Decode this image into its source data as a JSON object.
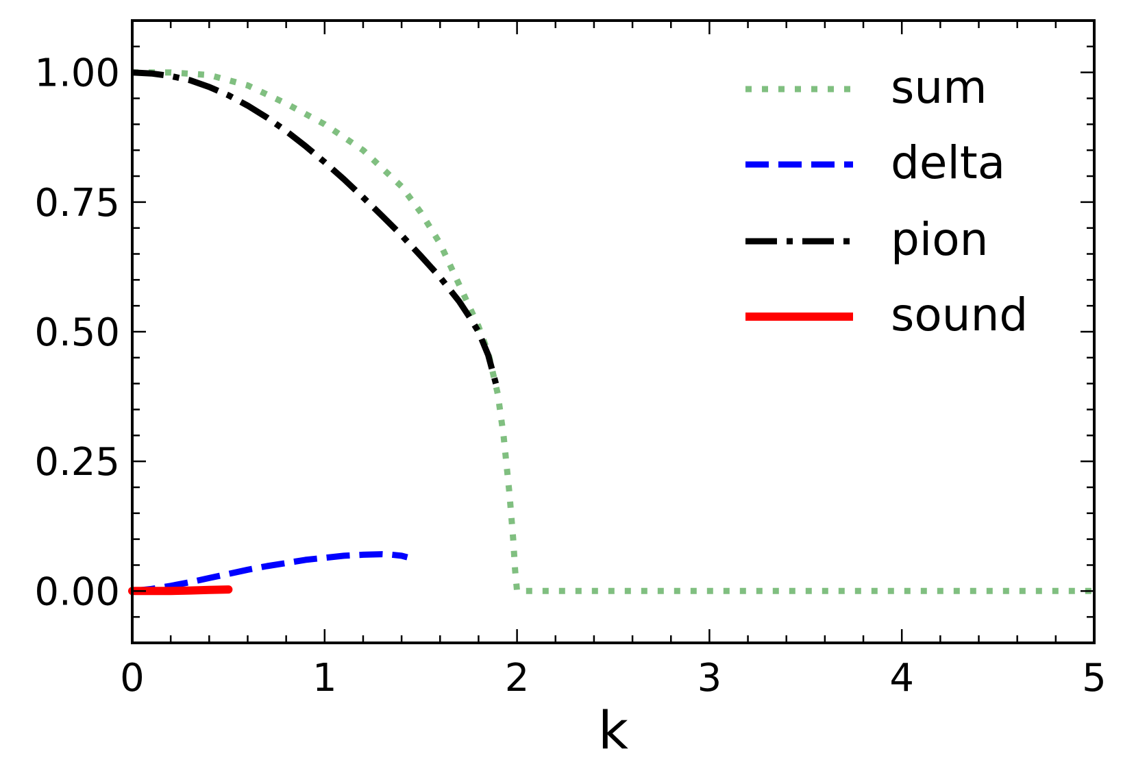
{
  "chart_data": {
    "type": "line",
    "title": "",
    "xlabel": "k",
    "ylabel": "",
    "xlim": [
      0,
      5
    ],
    "ylim": [
      -0.1,
      1.1
    ],
    "x_ticks": [
      0,
      1,
      2,
      3,
      4,
      5
    ],
    "x_tick_labels": [
      "0",
      "1",
      "2",
      "3",
      "4",
      "5"
    ],
    "y_ticks": [
      0.0,
      0.25,
      0.5,
      0.75,
      1.0
    ],
    "y_tick_labels": [
      "0.00",
      "0.25",
      "0.50",
      "0.75",
      "1.00"
    ],
    "x_minor_step": 0.2,
    "y_minor_step": 0.05,
    "tick_direction": "in",
    "ticks_on_all_sides": true,
    "grid": false,
    "legend_position": "upper-right",
    "series": [
      {
        "name": "sum",
        "color": "#80bf80",
        "style": "dotted",
        "x": [
          0,
          0.2,
          0.4,
          0.6,
          0.8,
          1.0,
          1.2,
          1.4,
          1.5,
          1.6,
          1.7,
          1.8,
          1.85,
          1.9,
          1.93,
          1.96,
          1.98,
          1.99,
          2.0,
          2.5,
          3.0,
          3.5,
          4.0,
          4.5,
          5.0
        ],
        "y": [
          1.0,
          1.0,
          0.995,
          0.975,
          0.94,
          0.9,
          0.85,
          0.78,
          0.73,
          0.67,
          0.59,
          0.51,
          0.46,
          0.38,
          0.3,
          0.19,
          0.1,
          0.04,
          0.0,
          0.0,
          0.0,
          0.0,
          0.0,
          0.0,
          0.0
        ]
      },
      {
        "name": "delta",
        "color": "#0000ff",
        "style": "dashed",
        "x": [
          0,
          0.1,
          0.2,
          0.3,
          0.4,
          0.5,
          0.6,
          0.7,
          0.8,
          0.9,
          1.0,
          1.1,
          1.2,
          1.3,
          1.35,
          1.4,
          1.43
        ],
        "y": [
          0.0,
          0.004,
          0.01,
          0.017,
          0.025,
          0.033,
          0.041,
          0.048,
          0.054,
          0.06,
          0.064,
          0.068,
          0.07,
          0.071,
          0.07,
          0.068,
          0.065
        ]
      },
      {
        "name": "pion",
        "color": "#000000",
        "style": "dashdot",
        "x": [
          0,
          0.1,
          0.2,
          0.3,
          0.4,
          0.5,
          0.6,
          0.7,
          0.8,
          0.9,
          1.0,
          1.1,
          1.2,
          1.3,
          1.4,
          1.5,
          1.6,
          1.7,
          1.75,
          1.8,
          1.85,
          1.89
        ],
        "y": [
          1.0,
          0.998,
          0.993,
          0.985,
          0.972,
          0.956,
          0.936,
          0.913,
          0.887,
          0.858,
          0.827,
          0.794,
          0.759,
          0.723,
          0.686,
          0.646,
          0.605,
          0.558,
          0.53,
          0.5,
          0.455,
          0.4
        ]
      },
      {
        "name": "sound",
        "color": "#ff0000",
        "style": "solid",
        "x": [
          0,
          0.1,
          0.2,
          0.3,
          0.4,
          0.5
        ],
        "y": [
          0.0,
          0.0,
          0.0,
          0.001,
          0.002,
          0.003
        ]
      }
    ]
  }
}
